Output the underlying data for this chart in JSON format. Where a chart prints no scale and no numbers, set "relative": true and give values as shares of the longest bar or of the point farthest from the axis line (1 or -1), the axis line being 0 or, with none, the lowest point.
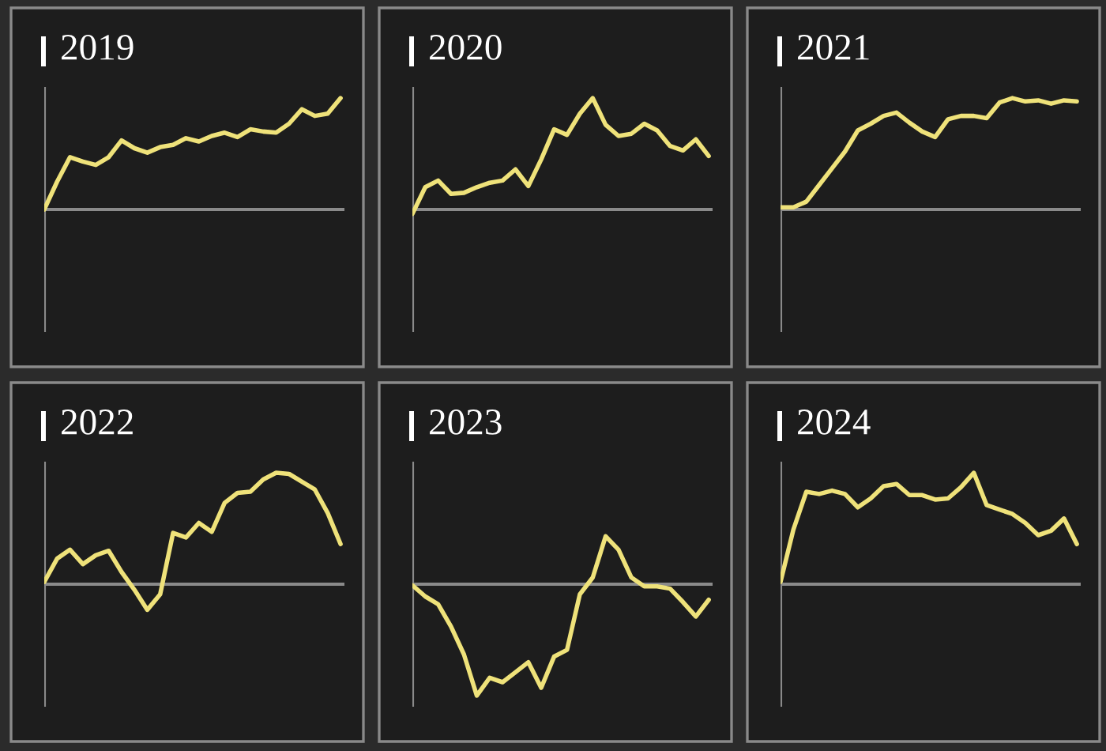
{
  "chart_data": [
    {
      "type": "line",
      "title": "2019",
      "relative": true,
      "categories": [
        null,
        null,
        null,
        null,
        null,
        null,
        null,
        null,
        null,
        null,
        null,
        null,
        null,
        null,
        null,
        null,
        null,
        null,
        null,
        null,
        null,
        null,
        null,
        null
      ],
      "series": [
        {
          "color": "#efe27a",
          "values": [
            0,
            0.25,
            0.47,
            0.43,
            0.4,
            0.47,
            0.62,
            0.55,
            0.51,
            0.56,
            0.58,
            0.64,
            0.61,
            0.66,
            0.69,
            0.65,
            0.72,
            0.7,
            0.69,
            0.77,
            0.9,
            0.84,
            0.86,
            1.0
          ]
        }
      ]
    },
    {
      "type": "line",
      "title": "2020",
      "relative": true,
      "categories": [
        null,
        null,
        null,
        null,
        null,
        null,
        null,
        null,
        null,
        null,
        null,
        null,
        null,
        null,
        null,
        null,
        null,
        null,
        null,
        null,
        null,
        null,
        null,
        null
      ],
      "series": [
        {
          "color": "#efe27a",
          "values": [
            -0.04,
            0.2,
            0.26,
            0.14,
            0.15,
            0.2,
            0.24,
            0.26,
            0.36,
            0.21,
            0.45,
            0.72,
            0.67,
            0.86,
            1.0,
            0.76,
            0.66,
            0.68,
            0.77,
            0.71,
            0.57,
            0.53,
            0.63,
            0.48
          ]
        }
      ]
    },
    {
      "type": "line",
      "title": "2021",
      "relative": true,
      "categories": [
        null,
        null,
        null,
        null,
        null,
        null,
        null,
        null,
        null,
        null,
        null,
        null,
        null,
        null,
        null,
        null,
        null,
        null,
        null,
        null,
        null,
        null,
        null,
        null
      ],
      "series": [
        {
          "color": "#efe27a",
          "values": [
            0.02,
            0.02,
            0.07,
            0.22,
            0.37,
            0.52,
            0.71,
            0.77,
            0.84,
            0.87,
            0.78,
            0.7,
            0.65,
            0.81,
            0.84,
            0.84,
            0.82,
            0.96,
            1.0,
            0.97,
            0.98,
            0.95,
            0.98,
            0.97
          ]
        }
      ]
    },
    {
      "type": "line",
      "title": "2022",
      "relative": true,
      "categories": [
        null,
        null,
        null,
        null,
        null,
        null,
        null,
        null,
        null,
        null,
        null,
        null,
        null,
        null,
        null,
        null,
        null,
        null,
        null,
        null,
        null,
        null,
        null,
        null
      ],
      "series": [
        {
          "color": "#efe27a",
          "values": [
            0.02,
            0.23,
            0.31,
            0.18,
            0.26,
            0.3,
            0.11,
            -0.05,
            -0.23,
            -0.09,
            0.46,
            0.42,
            0.55,
            0.47,
            0.73,
            0.82,
            0.83,
            0.94,
            1.0,
            0.99,
            0.92,
            0.85,
            0.64,
            0.36
          ]
        }
      ]
    },
    {
      "type": "line",
      "title": "2023",
      "relative": true,
      "categories": [
        null,
        null,
        null,
        null,
        null,
        null,
        null,
        null,
        null,
        null,
        null,
        null,
        null,
        null,
        null,
        null,
        null,
        null,
        null,
        null,
        null,
        null,
        null,
        null
      ],
      "series": [
        {
          "color": "#efe27a",
          "values": [
            -0.01,
            -0.11,
            -0.18,
            -0.38,
            -0.63,
            -1.0,
            -0.84,
            -0.88,
            -0.79,
            -0.7,
            -0.93,
            -0.65,
            -0.59,
            -0.09,
            0.06,
            0.43,
            0.31,
            0.06,
            -0.02,
            -0.02,
            -0.04,
            -0.16,
            -0.29,
            -0.14
          ]
        }
      ]
    },
    {
      "type": "line",
      "title": "2024",
      "relative": true,
      "categories": [
        null,
        null,
        null,
        null,
        null,
        null,
        null,
        null,
        null,
        null,
        null,
        null,
        null,
        null,
        null,
        null,
        null,
        null,
        null,
        null,
        null,
        null,
        null,
        null
      ],
      "series": [
        {
          "color": "#efe27a",
          "values": [
            0.02,
            0.49,
            0.83,
            0.81,
            0.84,
            0.81,
            0.69,
            0.77,
            0.88,
            0.9,
            0.8,
            0.8,
            0.76,
            0.77,
            0.87,
            1.0,
            0.71,
            0.67,
            0.63,
            0.55,
            0.44,
            0.48,
            0.59,
            0.36
          ]
        }
      ]
    }
  ]
}
